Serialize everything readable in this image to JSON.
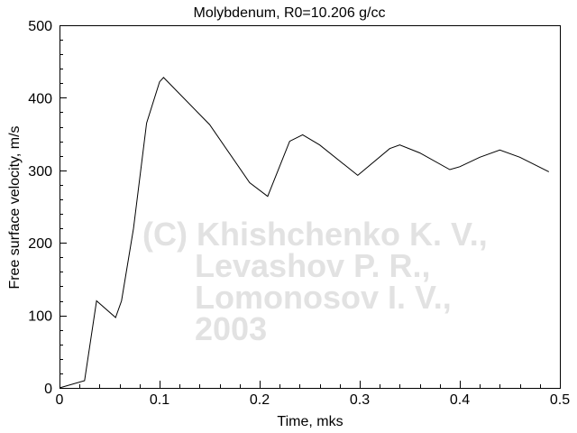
{
  "chart_data": {
    "type": "line",
    "title": "Molybdenum, R0=10.206 g/cc",
    "xlabel": "Time, mks",
    "ylabel": "Free surface velocity, m/s",
    "xlim": [
      0,
      0.5
    ],
    "ylim": [
      0,
      500
    ],
    "xticks": [
      "0",
      "0.1",
      "0.2",
      "0.3",
      "0.4",
      "0.5"
    ],
    "yticks": [
      "0",
      "100",
      "200",
      "300",
      "400",
      "500"
    ],
    "grid": false,
    "line_color": "#000000",
    "series": [
      {
        "x": [
          0,
          0.025,
          0.037,
          0.056,
          0.062,
          0.074,
          0.087,
          0.1,
          0.104,
          0.15,
          0.19,
          0.208,
          0.23,
          0.243,
          0.26,
          0.298,
          0.33,
          0.34,
          0.36,
          0.39,
          0.4,
          0.42,
          0.44,
          0.46,
          0.489
        ],
        "y": [
          0,
          10,
          120,
          97,
          120,
          220,
          365,
          422,
          428,
          363,
          283,
          264,
          340,
          349,
          335,
          293,
          330,
          335,
          324,
          301,
          305,
          318,
          328,
          318,
          298
        ]
      }
    ],
    "watermark": [
      "(C) Khishchenko K. V.,",
      "Levashov P. R.,",
      "Lomonosov I. V.,",
      "2003"
    ]
  }
}
